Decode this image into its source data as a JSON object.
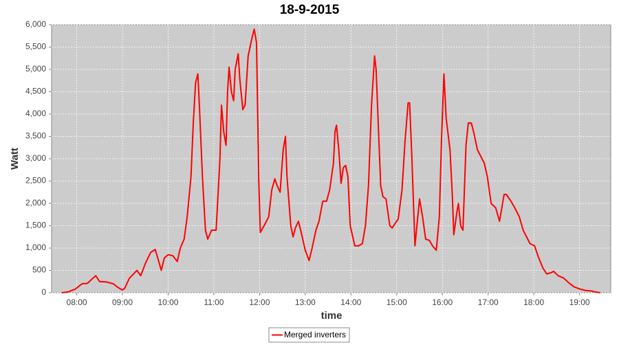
{
  "chart_data": {
    "type": "line",
    "title": "18-9-2015",
    "x_label": "time",
    "y_label": "Watt",
    "xlim": [
      447,
      1181
    ],
    "ylim": [
      0,
      6000
    ],
    "xticks": [
      {
        "value": 480,
        "label": "08:00"
      },
      {
        "value": 540,
        "label": "09:00"
      },
      {
        "value": 600,
        "label": "10:00"
      },
      {
        "value": 660,
        "label": "11:00"
      },
      {
        "value": 720,
        "label": "12:00"
      },
      {
        "value": 780,
        "label": "13:00"
      },
      {
        "value": 840,
        "label": "14:00"
      },
      {
        "value": 900,
        "label": "15:00"
      },
      {
        "value": 960,
        "label": "16:00"
      },
      {
        "value": 1020,
        "label": "17:00"
      },
      {
        "value": 1080,
        "label": "18:00"
      },
      {
        "value": 1140,
        "label": "19:00"
      }
    ],
    "yticks": [
      0,
      500,
      {
        "value": 1000,
        "label": "1,000"
      },
      {
        "value": 1500,
        "label": "1,500"
      },
      {
        "value": 2000,
        "label": "2,000"
      },
      {
        "value": 2500,
        "label": "2,500"
      },
      {
        "value": 3000,
        "label": "3,000"
      },
      {
        "value": 3500,
        "label": "3,500"
      },
      {
        "value": 4000,
        "label": "4,000"
      },
      {
        "value": 4500,
        "label": "4,500"
      },
      {
        "value": 5000,
        "label": "5,000"
      },
      {
        "value": 5500,
        "label": "5,500"
      },
      {
        "value": 6000,
        "label": "6,000"
      }
    ],
    "grid": true,
    "legend": "bottom",
    "x": [
      460,
      469,
      478,
      487,
      494,
      501,
      505,
      510,
      519,
      528,
      534,
      540,
      543,
      549,
      555,
      559,
      564,
      570,
      577,
      583,
      586,
      591,
      595,
      600,
      606,
      612,
      616,
      621,
      625,
      630,
      633,
      636,
      639,
      641,
      645,
      649,
      652,
      657,
      663,
      668,
      670,
      673,
      676,
      678,
      680,
      683,
      686,
      688,
      692,
      694,
      698,
      701,
      705,
      710,
      713,
      716,
      719,
      721,
      726,
      732,
      736,
      740,
      743,
      747,
      751,
      754,
      756,
      761,
      764,
      767,
      771,
      774,
      780,
      785,
      789,
      794,
      798,
      803,
      808,
      812,
      817,
      819,
      821,
      824,
      827,
      830,
      833,
      836,
      839,
      845,
      850,
      855,
      859,
      863,
      867,
      871,
      873,
      876,
      879,
      882,
      886,
      891,
      894,
      898,
      902,
      907,
      911,
      915,
      917,
      920,
      924,
      926,
      930,
      934,
      938,
      943,
      947,
      952,
      956,
      959,
      962,
      965,
      970,
      973,
      975,
      979,
      981,
      984,
      987,
      991,
      994,
      998,
      1001,
      1006,
      1015,
      1019,
      1024,
      1030,
      1035,
      1041,
      1044,
      1050,
      1055,
      1061,
      1066,
      1072,
      1075,
      1081,
      1086,
      1092,
      1097,
      1103,
      1106,
      1112,
      1119,
      1126,
      1133,
      1141,
      1148,
      1155,
      1160,
      1167
    ],
    "series": [
      {
        "name": "Merged inverters",
        "color": "#ff0000",
        "values": [
          0,
          20,
          80,
          200,
          210,
          320,
          380,
          250,
          240,
          200,
          120,
          60,
          100,
          320,
          430,
          500,
          380,
          650,
          900,
          970,
          800,
          500,
          780,
          850,
          830,
          700,
          1000,
          1200,
          1700,
          2600,
          3800,
          4700,
          4900,
          4200,
          2600,
          1400,
          1200,
          1400,
          1400,
          3000,
          4200,
          3600,
          3300,
          4500,
          5050,
          4500,
          4300,
          5000,
          5350,
          4800,
          4100,
          4200,
          5300,
          5700,
          5900,
          5600,
          2500,
          1350,
          1500,
          1700,
          2300,
          2550,
          2400,
          2250,
          3200,
          3500,
          2600,
          1500,
          1250,
          1450,
          1600,
          1400,
          950,
          720,
          1000,
          1400,
          1600,
          2050,
          2050,
          2300,
          2900,
          3600,
          3750,
          3200,
          2450,
          2800,
          2850,
          2600,
          1500,
          1050,
          1050,
          1100,
          1500,
          2400,
          4200,
          5300,
          5000,
          3700,
          2400,
          2150,
          2100,
          1500,
          1450,
          1550,
          1650,
          2300,
          3400,
          4250,
          4250,
          3000,
          1050,
          1400,
          2100,
          1700,
          1200,
          1170,
          1050,
          950,
          1700,
          3500,
          4900,
          3900,
          3200,
          2200,
          1300,
          1800,
          2000,
          1500,
          1400,
          3300,
          3800,
          3800,
          3600,
          3200,
          2900,
          2600,
          2000,
          1900,
          1600,
          2200,
          2200,
          2050,
          1900,
          1700,
          1400,
          1200,
          1100,
          1050,
          800,
          550,
          420,
          450,
          480,
          380,
          330,
          220,
          130,
          80,
          50,
          40,
          20,
          0
        ]
      }
    ]
  }
}
